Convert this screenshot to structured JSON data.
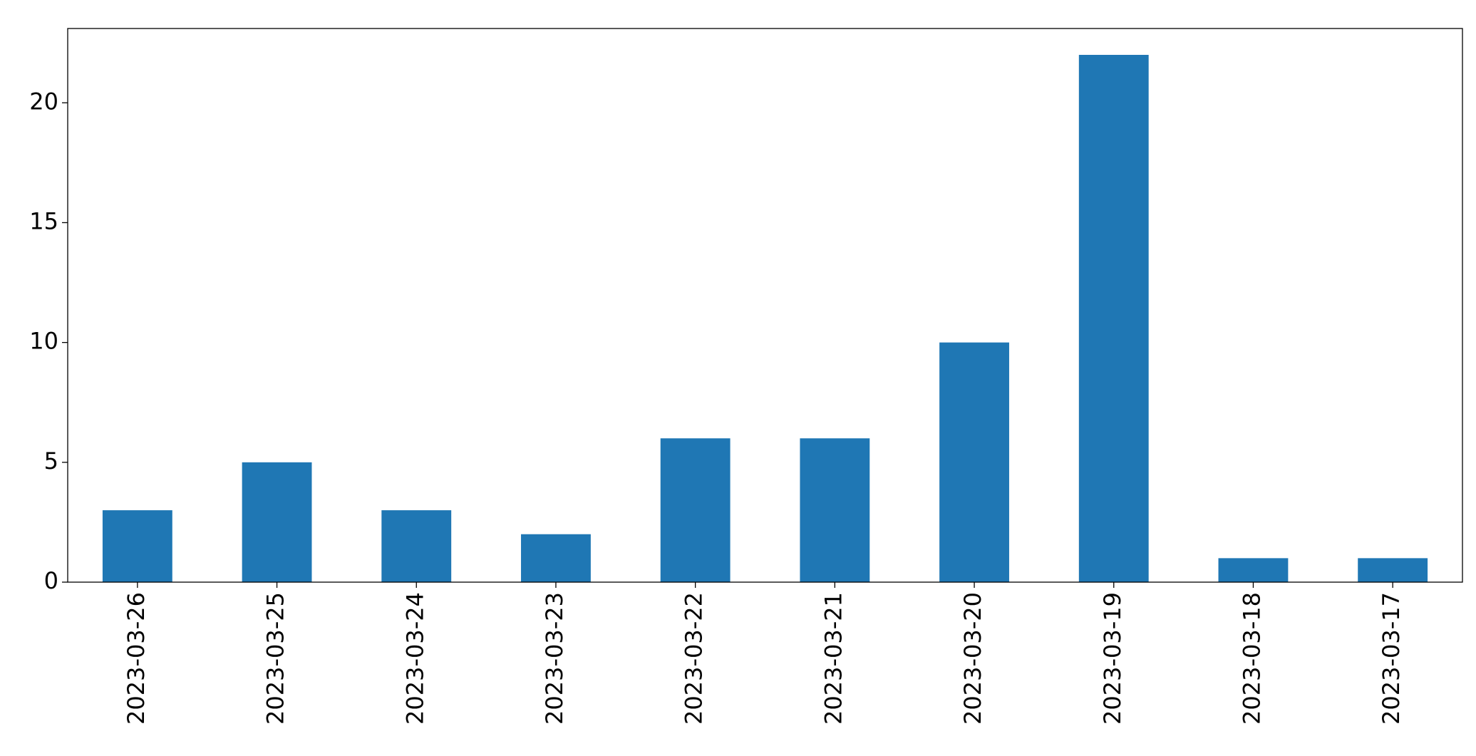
{
  "chart_data": {
    "type": "bar",
    "categories": [
      "2023-03-26",
      "2023-03-25",
      "2023-03-24",
      "2023-03-23",
      "2023-03-22",
      "2023-03-21",
      "2023-03-20",
      "2023-03-19",
      "2023-03-18",
      "2023-03-17"
    ],
    "values": [
      3,
      5,
      3,
      2,
      6,
      6,
      10,
      22,
      1,
      1
    ],
    "color": "#1f77b4",
    "ylim": [
      0,
      23.1
    ],
    "yticks": [
      0,
      5,
      10,
      15,
      20
    ],
    "grid": false
  }
}
